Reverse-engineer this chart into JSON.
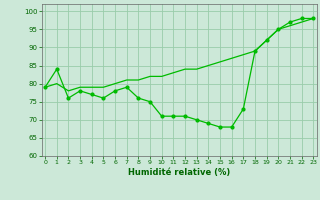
{
  "x": [
    0,
    1,
    2,
    3,
    4,
    5,
    6,
    7,
    8,
    9,
    10,
    11,
    12,
    13,
    14,
    15,
    16,
    17,
    18,
    19,
    20,
    21,
    22,
    23
  ],
  "line1": [
    79,
    84,
    76,
    78,
    77,
    76,
    78,
    79,
    76,
    75,
    71,
    71,
    71,
    70,
    69,
    68,
    68,
    73,
    89,
    92,
    95,
    97,
    98,
    98
  ],
  "line2": [
    79,
    80,
    78,
    79,
    79,
    79,
    80,
    81,
    81,
    82,
    82,
    83,
    84,
    84,
    85,
    86,
    87,
    88,
    89,
    92,
    95,
    96,
    97,
    98
  ],
  "line_color": "#00bb00",
  "bg_color": "#cce8d8",
  "grid_color": "#99ccaa",
  "axis_color": "#006600",
  "xlabel": "Humidité relative (%)",
  "ylim": [
    60,
    102
  ],
  "xlim": [
    -0.3,
    23.3
  ],
  "yticks": [
    60,
    65,
    70,
    75,
    80,
    85,
    90,
    95,
    100
  ],
  "xticks": [
    0,
    1,
    2,
    3,
    4,
    5,
    6,
    7,
    8,
    9,
    10,
    11,
    12,
    13,
    14,
    15,
    16,
    17,
    18,
    19,
    20,
    21,
    22,
    23
  ]
}
